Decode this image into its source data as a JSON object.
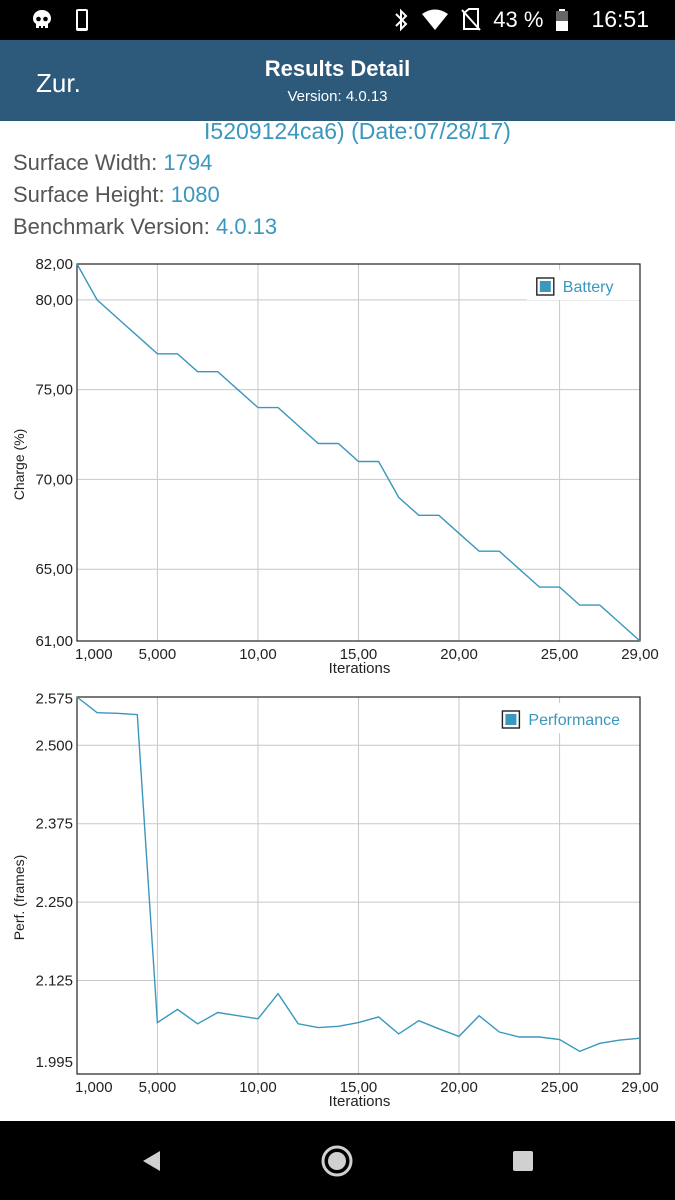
{
  "status_bar": {
    "battery_percent": "43 %",
    "time": "16:51",
    "icons": [
      "skull-icon",
      "phone-icon",
      "bluetooth-icon",
      "wifi-icon",
      "no-sim-icon",
      "battery-icon"
    ]
  },
  "header": {
    "back_label": "Zur.",
    "title": "Results Detail",
    "version": "Version: 4.0.13"
  },
  "info": {
    "device_line": "I5209124ca6) (Date:07/28/17)",
    "surface_width_label": "Surface Width: ",
    "surface_width_value": "1794",
    "surface_height_label": "Surface Height: ",
    "surface_height_value": "1080",
    "benchmark_label": "Benchmark Version: ",
    "benchmark_value": "4.0.13"
  },
  "colors": {
    "accent": "#3a97bd",
    "appbar": "#2d5a7b",
    "grid": "#c8c8c8"
  },
  "chart_data": [
    {
      "type": "line",
      "ylabel": "Charge (%)",
      "xlabel": "Iterations",
      "legend": "Battery",
      "legend_placement": "top-right",
      "xlim": [
        0,
        28
      ],
      "ylim": [
        61,
        82
      ],
      "xticks": [
        {
          "v": 1,
          "label": "1,000"
        },
        {
          "v": 4,
          "label": "5,000"
        },
        {
          "v": 9,
          "label": "10,00"
        },
        {
          "v": 14,
          "label": "15,00"
        },
        {
          "v": 19,
          "label": "20,00"
        },
        {
          "v": 24,
          "label": "25,00"
        },
        {
          "v": 28,
          "label": "29,00"
        }
      ],
      "yticks": [
        {
          "v": 82,
          "label": "82,00"
        },
        {
          "v": 80,
          "label": "80,00"
        },
        {
          "v": 75,
          "label": "75,00"
        },
        {
          "v": 70,
          "label": "70,00"
        },
        {
          "v": 65,
          "label": "65,00"
        },
        {
          "v": 61,
          "label": "61,00"
        }
      ],
      "ygrid": [
        80,
        75,
        70,
        65
      ],
      "xgrid": [
        4,
        9,
        14,
        19,
        24
      ],
      "x": [
        0,
        1,
        2,
        3,
        4,
        5,
        6,
        7,
        8,
        9,
        10,
        11,
        12,
        13,
        14,
        15,
        16,
        17,
        18,
        19,
        20,
        21,
        22,
        23,
        24,
        25,
        26,
        27,
        28
      ],
      "values": [
        82,
        80,
        79,
        78,
        77,
        77,
        76,
        76,
        75,
        74,
        74,
        73,
        72,
        72,
        71,
        71,
        69,
        68,
        68,
        67,
        66,
        66,
        65,
        64,
        64,
        63,
        63,
        62,
        61
      ]
    },
    {
      "type": "line",
      "ylabel": "Perf. (frames)",
      "xlabel": "Iterations",
      "legend": "Performance",
      "legend_placement": "top-right",
      "xlim": [
        0,
        28
      ],
      "ylim": [
        1.976,
        2.577
      ],
      "xticks": [
        {
          "v": 1,
          "label": "1,000"
        },
        {
          "v": 4,
          "label": "5,000"
        },
        {
          "v": 9,
          "label": "10,00"
        },
        {
          "v": 14,
          "label": "15,00"
        },
        {
          "v": 19,
          "label": "20,00"
        },
        {
          "v": 24,
          "label": "25,00"
        },
        {
          "v": 28,
          "label": "29,00"
        }
      ],
      "yticks": [
        {
          "v": 2.575,
          "label": "2.575"
        },
        {
          "v": 2.5,
          "label": "2.500"
        },
        {
          "v": 2.375,
          "label": "2.375"
        },
        {
          "v": 2.25,
          "label": "2.250"
        },
        {
          "v": 2.125,
          "label": "2.125"
        },
        {
          "v": 1.995,
          "label": "1.995"
        }
      ],
      "ygrid": [
        2.5,
        2.375,
        2.25,
        2.125
      ],
      "xgrid": [
        4,
        9,
        14,
        19,
        24
      ],
      "x": [
        0,
        1,
        2,
        3,
        4,
        5,
        6,
        7,
        8,
        9,
        10,
        11,
        12,
        13,
        14,
        15,
        16,
        17,
        18,
        19,
        20,
        21,
        22,
        23,
        24,
        25,
        26,
        27,
        28
      ],
      "values": [
        2.577,
        2.552,
        2.551,
        2.549,
        2.058,
        2.079,
        2.056,
        2.074,
        2.069,
        2.064,
        2.104,
        2.056,
        2.05,
        2.052,
        2.058,
        2.067,
        2.04,
        2.061,
        2.048,
        2.036,
        2.069,
        2.043,
        2.035,
        2.035,
        2.031,
        2.012,
        2.025,
        2.03,
        2.033
      ]
    }
  ]
}
